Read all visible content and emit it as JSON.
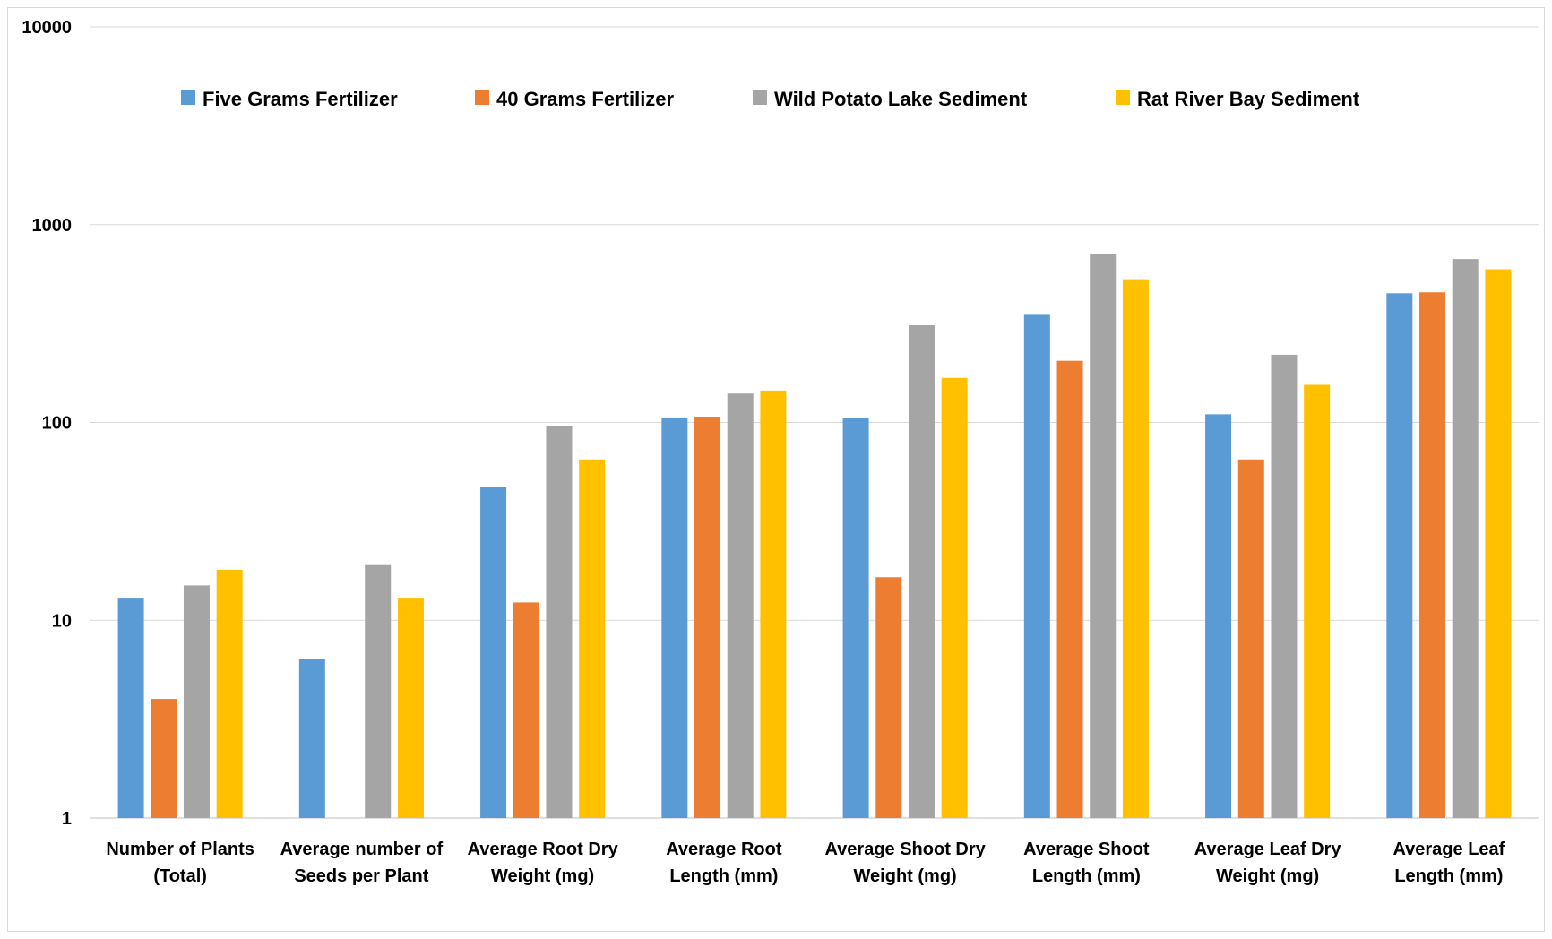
{
  "chart_data": {
    "type": "bar",
    "scale": "log",
    "ylim": [
      1,
      10000
    ],
    "yticks": [
      "1",
      "10",
      "100",
      "1000",
      "10000"
    ],
    "yticks_values": [
      1,
      10,
      100,
      1000,
      10000
    ],
    "grid": true,
    "legend_position": "top",
    "categories": [
      [
        "Number of Plants",
        "(Total)"
      ],
      [
        "Average number of",
        "Seeds per Plant"
      ],
      [
        "Average Root Dry",
        "Weight (mg)"
      ],
      [
        "Average Root",
        "Length (mm)"
      ],
      [
        "Average Shoot Dry",
        "Weight (mg)"
      ],
      [
        "Average Shoot",
        "Length (mm)"
      ],
      [
        "Average Leaf Dry",
        "Weight (mg)"
      ],
      [
        "Average Leaf",
        "Length (mm)"
      ]
    ],
    "series": [
      {
        "name": "Five Grams Fertilizer",
        "color": "#5B9BD5",
        "values": [
          13,
          6.4,
          47,
          106,
          105,
          350,
          110,
          450
        ]
      },
      {
        "name": "40 Grams Fertilizer",
        "color": "#ED7D31",
        "values": [
          4,
          null,
          12.3,
          107,
          16.5,
          205,
          65,
          455
        ]
      },
      {
        "name": "Wild Potato Lake Sediment",
        "color": "#A5A5A5",
        "values": [
          15,
          19,
          96,
          140,
          310,
          710,
          220,
          670
        ]
      },
      {
        "name": "Rat River Bay Sediment",
        "color": "#FFC000",
        "values": [
          18,
          13,
          65,
          145,
          168,
          530,
          155,
          595
        ]
      }
    ]
  }
}
